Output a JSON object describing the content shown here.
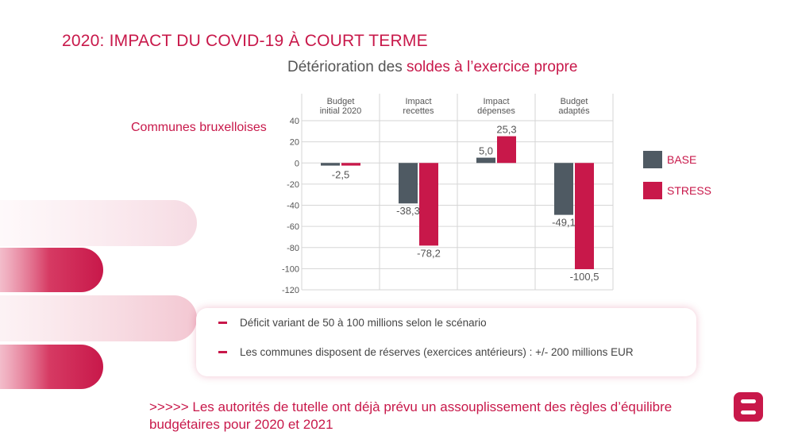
{
  "page": {
    "title": "2020: IMPACT DU COVID-19 À COURT TERME",
    "subtitle_prefix": "Détérioration des ",
    "subtitle_accent": "soldes à l’exercice propre",
    "row_label": "Communes bruxelloises"
  },
  "colors": {
    "accent": "#c8184a",
    "base": "#4f5a63",
    "stress": "#c8184a"
  },
  "chart_data": {
    "type": "bar",
    "title": "Détérioration des soldes à l’exercice propre",
    "categories": [
      "Budget initial 2020",
      "Impact recettes",
      "Impact dépenses",
      "Budget adaptés"
    ],
    "category_lines": [
      [
        "Budget",
        "initial 2020"
      ],
      [
        "Impact",
        "recettes"
      ],
      [
        "Impact",
        "dépenses"
      ],
      [
        "Budget",
        "adaptés"
      ]
    ],
    "series": [
      {
        "name": "BASE",
        "values": [
          -2.5,
          -38.3,
          5.0,
          -49.1
        ],
        "labels": [
          "",
          "-38,3",
          "5,0",
          "-49,1"
        ]
      },
      {
        "name": "STRESS",
        "values": [
          -2.5,
          -78.2,
          25.3,
          -100.5
        ],
        "labels": [
          "-2,5",
          "-78,2",
          "25,3",
          "-100,5"
        ]
      }
    ],
    "ylim": [
      -120,
      40
    ],
    "yticks": [
      40,
      20,
      0,
      -20,
      -40,
      -60,
      -80,
      -100,
      -120
    ],
    "ytick_labels": [
      "40",
      "20",
      "0",
      "-20",
      "-40",
      "-60",
      "-80",
      "-100",
      "-120"
    ],
    "grid": true,
    "legend": "right"
  },
  "notes": [
    "Déficit variant de 50 à 100 millions selon le scénario",
    "Les communes disposent de réserves (exercices antérieurs) : +/- 200 millions EUR"
  ],
  "conclusion": ">>>>> Les autorités de tutelle ont déjà prévu un assouplissement des règles d’équilibre budgétaires pour 2020 et 2021"
}
